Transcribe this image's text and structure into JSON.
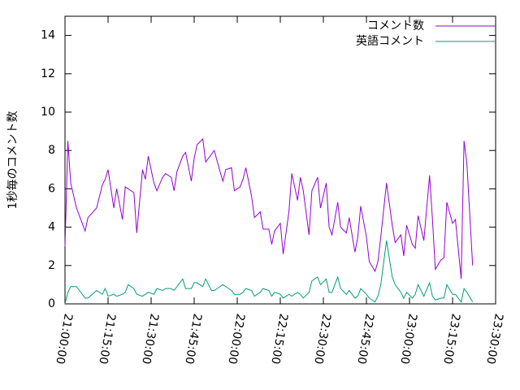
{
  "chart_data": {
    "type": "line",
    "ylabel": "1秒毎のコメント数",
    "x": [
      "21:00:00",
      "21:01:00",
      "21:02:00",
      "21:04:00",
      "21:07:00",
      "21:08:00",
      "21:11:00",
      "21:13:00",
      "21:14:00",
      "21:15:00",
      "21:17:00",
      "21:18:00",
      "21:20:00",
      "21:21:00",
      "21:22:00",
      "21:24:00",
      "21:25:00",
      "21:27:00",
      "21:28:00",
      "21:29:00",
      "21:31:00",
      "21:32:00",
      "21:34:00",
      "21:35:00",
      "21:37:00",
      "21:38:00",
      "21:39:00",
      "21:41:00",
      "21:42:00",
      "21:44:00",
      "21:45:00",
      "21:46:00",
      "21:48:00",
      "21:49:00",
      "21:51:00",
      "21:52:00",
      "21:54:00",
      "21:55:00",
      "21:56:00",
      "21:58:00",
      "21:59:00",
      "22:01:00",
      "22:02:00",
      "22:03:00",
      "22:05:00",
      "22:06:00",
      "22:08:00",
      "22:09:00",
      "22:11:00",
      "22:12:00",
      "22:13:00",
      "22:15:00",
      "22:16:00",
      "22:18:00",
      "22:19:00",
      "22:21:00",
      "22:22:00",
      "22:23:00",
      "22:25:00",
      "22:26:00",
      "22:28:00",
      "22:29:00",
      "22:31:00",
      "22:32:00",
      "22:33:00",
      "22:35:00",
      "22:36:00",
      "22:38:00",
      "22:39:00",
      "22:41:00",
      "22:42:00",
      "22:43:00",
      "22:45:00",
      "22:46:00",
      "22:48:00",
      "22:49:00",
      "22:50:00",
      "22:52:00",
      "22:54:00",
      "22:55:00",
      "22:57:00",
      "22:58:00",
      "22:59:00",
      "23:01:00",
      "23:02:00",
      "23:03:00",
      "23:05:00",
      "23:07:00",
      "23:08:00",
      "23:09:00",
      "23:11:00",
      "23:12:00",
      "23:13:00",
      "23:15:00",
      "23:16:00",
      "23:18:00",
      "23:19:00",
      "23:20:00",
      "23:22:00"
    ],
    "series": [
      {
        "name": "コメント数",
        "color": "#9400d3",
        "values": [
          3.0,
          8.5,
          6.3,
          5.0,
          3.8,
          4.5,
          5.0,
          6.2,
          6.5,
          7.0,
          5.0,
          6.0,
          4.4,
          6.1,
          6.0,
          5.8,
          3.7,
          7.0,
          6.5,
          7.7,
          6.3,
          5.9,
          6.6,
          6.8,
          6.6,
          5.9,
          6.9,
          7.7,
          7.9,
          6.4,
          7.6,
          8.3,
          8.6,
          7.4,
          7.8,
          8.0,
          6.9,
          6.4,
          7.0,
          7.1,
          5.9,
          6.1,
          6.5,
          7.1,
          5.6,
          4.5,
          4.8,
          3.9,
          3.9,
          3.1,
          3.8,
          4.2,
          2.6,
          4.8,
          6.8,
          5.4,
          6.6,
          5.9,
          3.6,
          5.9,
          6.6,
          5.0,
          6.3,
          4.0,
          3.6,
          5.3,
          4.0,
          3.7,
          4.5,
          2.7,
          3.5,
          5.1,
          3.5,
          2.2,
          1.7,
          2.2,
          3.5,
          6.3,
          4.1,
          3.2,
          3.6,
          2.5,
          4.1,
          3.1,
          2.9,
          4.6,
          3.3,
          6.7,
          4.4,
          1.8,
          2.3,
          2.4,
          5.3,
          4.2,
          4.4,
          1.3,
          8.5,
          7.3,
          2.0
        ]
      },
      {
        "name": "英語コメント",
        "color": "#009e73",
        "values": [
          0.0,
          0.6,
          0.9,
          0.9,
          0.3,
          0.3,
          0.7,
          0.5,
          0.8,
          0.4,
          0.5,
          0.4,
          0.5,
          0.6,
          1.0,
          0.8,
          0.5,
          0.4,
          0.5,
          0.6,
          0.5,
          0.8,
          0.7,
          0.8,
          0.8,
          0.7,
          0.9,
          1.3,
          0.8,
          0.8,
          1.1,
          1.1,
          0.9,
          1.3,
          0.7,
          0.7,
          0.9,
          1.0,
          0.9,
          0.7,
          0.5,
          0.5,
          0.6,
          0.8,
          0.7,
          0.4,
          0.6,
          0.8,
          0.7,
          0.4,
          0.6,
          0.5,
          0.3,
          0.5,
          0.4,
          0.6,
          0.5,
          0.3,
          0.6,
          1.2,
          1.4,
          1.0,
          1.3,
          0.6,
          0.6,
          1.4,
          0.8,
          0.5,
          0.7,
          0.3,
          0.4,
          0.8,
          0.5,
          0.3,
          0.1,
          0.4,
          1.0,
          3.3,
          1.4,
          1.0,
          0.6,
          0.3,
          0.6,
          0.3,
          0.5,
          1.0,
          0.4,
          1.1,
          0.4,
          0.2,
          0.3,
          0.3,
          1.0,
          0.5,
          0.5,
          0.1,
          0.8,
          0.6,
          0.1
        ]
      }
    ],
    "xlim": [
      "21:00:00",
      "23:30:00"
    ],
    "xticks": [
      "21:00:00",
      "21:15:00",
      "21:30:00",
      "21:45:00",
      "22:00:00",
      "22:15:00",
      "22:30:00",
      "22:45:00",
      "23:00:00",
      "23:15:00",
      "23:30:00"
    ],
    "ylim": [
      0,
      15
    ],
    "yticks": [
      0,
      2,
      4,
      6,
      8,
      10,
      12,
      14
    ],
    "grid": false,
    "legend": "top-right"
  }
}
